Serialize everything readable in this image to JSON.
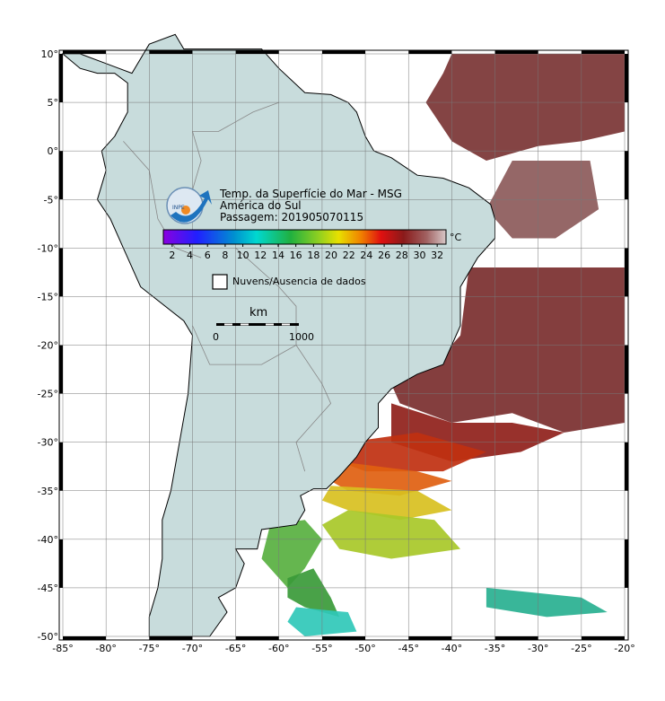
{
  "header": {
    "logo_text": "INPE",
    "title": "Temp. da Superfície do Mar - MSG",
    "region": "América do Sul",
    "pass": "Passagem: 201905070115"
  },
  "colorbar": {
    "range": [
      1,
      33
    ],
    "ticks": [
      2,
      4,
      6,
      8,
      10,
      12,
      14,
      16,
      18,
      20,
      22,
      24,
      26,
      28,
      30,
      32
    ],
    "unit": "°C"
  },
  "legend": {
    "no_data": "Nuvens/Ausencia de dados"
  },
  "scale_bar": {
    "unit": "km",
    "start": "0",
    "end": "1000"
  },
  "map": {
    "lon_range": [
      -85,
      -20
    ],
    "lat_range": [
      -50,
      10
    ],
    "lon_ticks": [
      {
        "value": -85,
        "label": "-85°"
      },
      {
        "value": -80,
        "label": "-80°"
      },
      {
        "value": -75,
        "label": "-75°"
      },
      {
        "value": -70,
        "label": "-70°"
      },
      {
        "value": -65,
        "label": "-65°"
      },
      {
        "value": -60,
        "label": "-60°"
      },
      {
        "value": -55,
        "label": "-55°"
      },
      {
        "value": -50,
        "label": "-50°"
      },
      {
        "value": -45,
        "label": "-45°"
      },
      {
        "value": -40,
        "label": "-40°"
      },
      {
        "value": -35,
        "label": "-35°"
      },
      {
        "value": -30,
        "label": "-30°"
      },
      {
        "value": -25,
        "label": "-25°"
      },
      {
        "value": -20,
        "label": "-20°"
      }
    ],
    "lat_ticks": [
      {
        "value": 10,
        "label": "10°"
      },
      {
        "value": 5,
        "label": "5°"
      },
      {
        "value": 0,
        "label": "0°"
      },
      {
        "value": -5,
        "label": "-5°"
      },
      {
        "value": -10,
        "label": "-10°"
      },
      {
        "value": -15,
        "label": "-15°"
      },
      {
        "value": -20,
        "label": "-20°"
      },
      {
        "value": -25,
        "label": "-25°"
      },
      {
        "value": -30,
        "label": "-30°"
      },
      {
        "value": -35,
        "label": "-35°"
      },
      {
        "value": -40,
        "label": "-40°"
      },
      {
        "value": -45,
        "label": "-45°"
      },
      {
        "value": -50,
        "label": "-50°"
      }
    ]
  }
}
